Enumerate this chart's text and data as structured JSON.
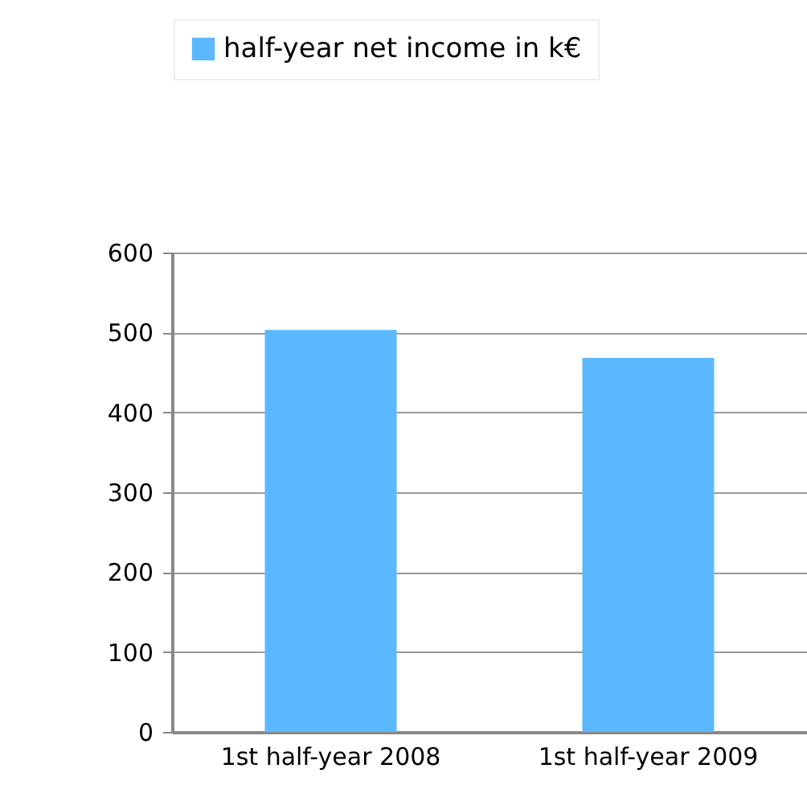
{
  "chart_data": {
    "type": "bar",
    "categories": [
      "1st half-year 2008",
      "1st half-year 2009"
    ],
    "series": [
      {
        "name": "half-year net income in k€",
        "color": "#5bb8ff",
        "values": [
          503,
          468
        ]
      }
    ],
    "ylim": [
      0,
      600
    ],
    "yticks": [
      0,
      100,
      200,
      300,
      400,
      500,
      600
    ],
    "grid": "y",
    "legend": "top"
  }
}
